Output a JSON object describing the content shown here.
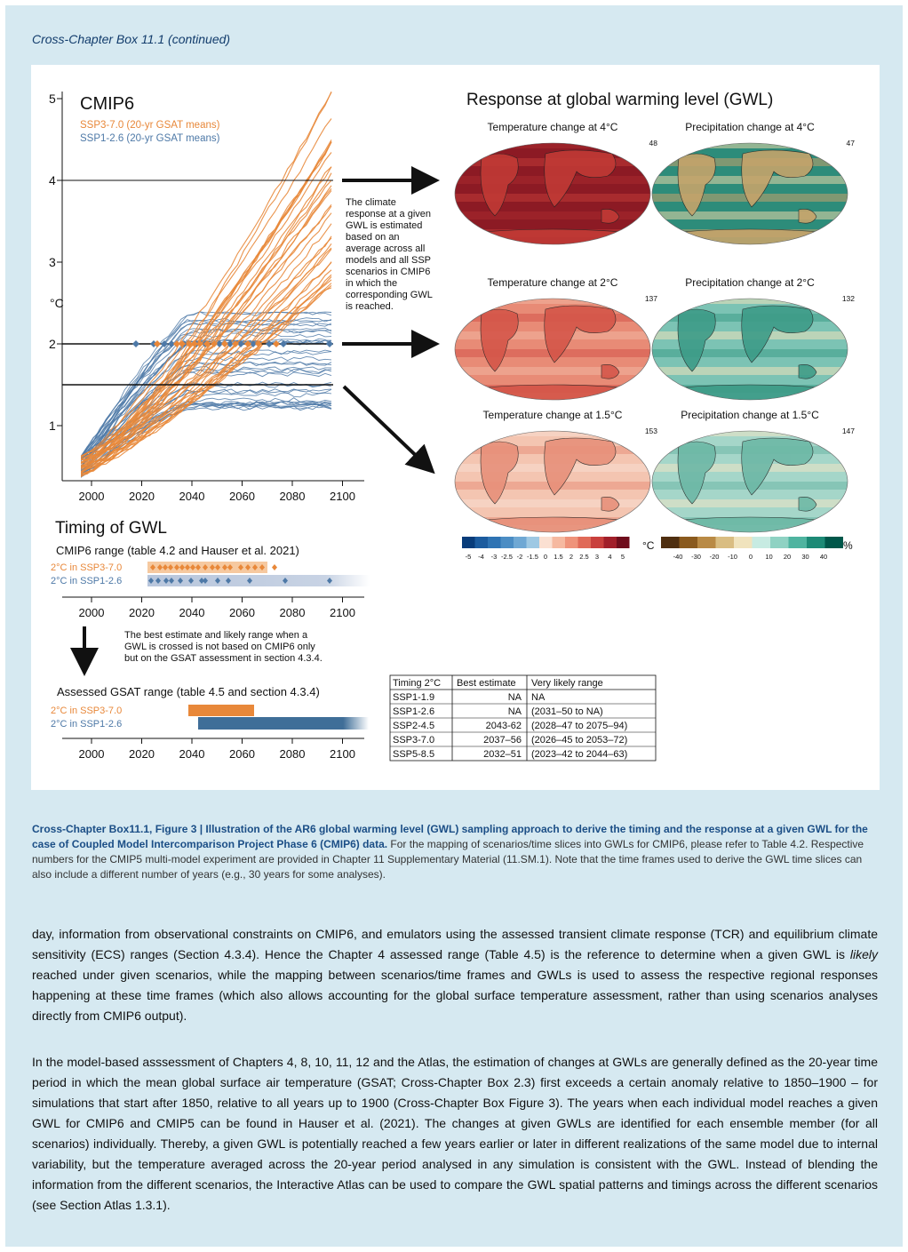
{
  "header": {
    "label": "Cross-Chapter Box 11.1 (continued)"
  },
  "figure": {
    "left": {
      "title": "CMIP6",
      "legend": [
        "SSP3-7.0 (20-yr GSAT means)",
        "SSP1-2.6 (20-yr GSAT means)"
      ],
      "ylabel": "°C",
      "yticks": [
        "1",
        "2",
        "3",
        "4",
        "5"
      ],
      "xticks": [
        "2000",
        "2020",
        "2040",
        "2060",
        "2080",
        "2100"
      ],
      "explain": [
        "The climate",
        "response at a given",
        "GWL is estimated",
        "based on an",
        "average across all",
        "models and all SSP",
        "scenarios in CMIP6",
        "in which the",
        "corresponding GWL",
        "is reached."
      ]
    },
    "timing": {
      "title": "Timing of GWL",
      "cmip_range_label": "CMIP6 range (table 4.2 and Hauser et al. 2021)",
      "rows": [
        "2°C in SSP3-7.0",
        "2°C in SSP1-2.6"
      ],
      "note": [
        "The best estimate and likely range when a",
        "GWL is crossed is not based on CMIP6 only",
        "but on the GSAT assessment in section 4.3.4."
      ],
      "assessed_label": "Assessed GSAT range (table 4.5 and section 4.3.4)",
      "assessed_rows": [
        "2°C in SSP3-7.0",
        "2°C in SSP1-2.6"
      ]
    },
    "maps": {
      "title": "Response at global warming level (GWL)",
      "panels": [
        {
          "title": "Temperature change at 4°C",
          "count": "48"
        },
        {
          "title": "Precipitation change at 4°C",
          "count": "47"
        },
        {
          "title": "Temperature change at 2°C",
          "count": "137"
        },
        {
          "title": "Precipitation change at 2°C",
          "count": "132"
        },
        {
          "title": "Temperature change at 1.5°C",
          "count": "153"
        },
        {
          "title": "Precipitation change at 1.5°C",
          "count": "147"
        }
      ],
      "temp_ticks": [
        "-5",
        "-4",
        "-3",
        "-2.5",
        "-2",
        "-1.5",
        "0",
        "1.5",
        "2",
        "2.5",
        "3",
        "4",
        "5"
      ],
      "temp_unit": "°C",
      "precip_ticks": [
        "-40",
        "-30",
        "-20",
        "-10",
        "0",
        "10",
        "20",
        "30",
        "40"
      ],
      "precip_unit": "%"
    },
    "table": {
      "headers": [
        "Timing 2°C",
        "Best estimate",
        "Very likely range"
      ],
      "rows": [
        [
          "SSP1-1.9",
          "NA",
          "NA"
        ],
        [
          "SSP1-2.6",
          "NA",
          "(2031–50 to NA)"
        ],
        [
          "SSP2-4.5",
          "2043-62",
          "(2028–47 to 2075–94)"
        ],
        [
          "SSP3-7.0",
          "2037–56",
          "(2026–45 to 2053–72)"
        ],
        [
          "SSP5-8.5",
          "2032–51",
          "(2023–42 to 2044–63)"
        ]
      ]
    }
  },
  "caption": {
    "lead": "Cross-Chapter Box11.1, Figure 3 | Illustration of the AR6 global warming level (GWL) sampling approach to derive the timing and the response at a given GWL for the case of Coupled Model Intercomparison Project Phase 6 (CMIP6) data.",
    "rest": " For the mapping of scenarios/time slices into GWLs for CMIP6, please refer to Table 4.2. Respective numbers for the CMIP5 multi-model experiment are provided in Chapter 11 Supplementary Material (11.SM.1). Note that the time frames used to derive the GWL time slices can also include a different number of years (e.g., 30 years for some analyses)."
  },
  "body": {
    "p1_a": "day, information from observational constraints on CMIP6, and emulators using the assessed transient climate response (TCR) and equilibrium climate sensitivity (ECS) ranges (Section 4.3.4). Hence the Chapter 4 assessed range (Table 4.5) is the reference to determine when a given GWL is ",
    "p1_em": "likely",
    "p1_b": " reached under given scenarios, while the mapping between scenarios/time frames and GWLs is used to assess the respective regional responses happening at these time frames (which also allows accounting for the global surface temperature assessment, rather than using scenarios analyses directly from CMIP6 output).",
    "p2": "In the model-based asssessment of Chapters 4, 8, 10, 11, 12 and the Atlas, the estimation of changes at GWLs are generally defined as the 20-year time period in which the mean global surface air temperature (GSAT; Cross-Chapter Box 2.3) first exceeds a certain anomaly relative to 1850–1900 – for simulations that start after 1850, relative to all years up to 1900 (Cross-Chapter Box Figure 3). The years when each individual model reaches a given GWL for CMIP6 and CMIP5 can be found in Hauser et al. (2021). The changes at given GWLs are identified for each ensemble member (for all scenarios) individually. Thereby, a given GWL is potentially reached a few years earlier or later in different realizations of the same model due to internal variability, but the temperature averaged across the 20-year period analysed in any simulation is consistent with the GWL. Instead of blending the information from the different scenarios, the Interactive Atlas can be used to compare the GWL spatial patterns and timings across the different scenarios (see Section Atlas 1.3.1)."
  },
  "colors": {
    "ssp370": "#e8883a",
    "ssp126": "#4e79a7",
    "frame": "#d6e9f1",
    "heading": "#1b4e86"
  }
}
